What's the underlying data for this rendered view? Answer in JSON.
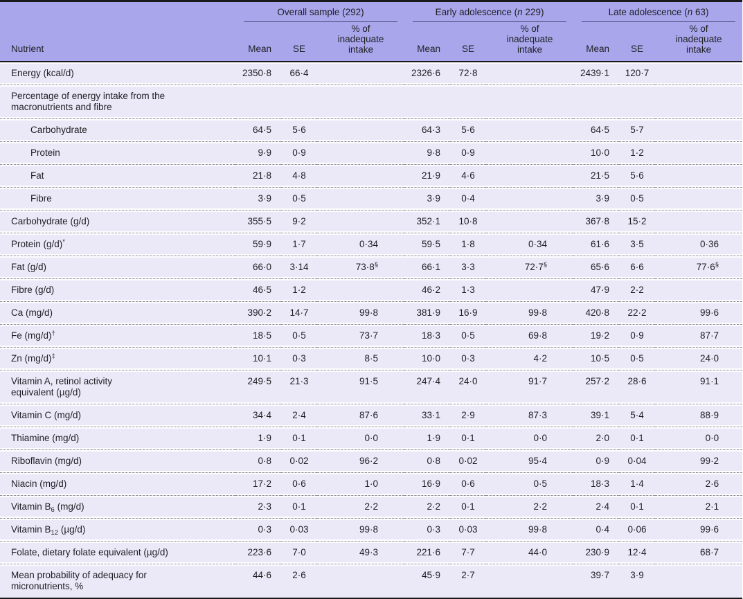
{
  "colors": {
    "header_bg": "#a9a6ec",
    "row_bg": "#ebe9f8",
    "band": "#fdfdff",
    "dash": "#8f8f93",
    "border_dark": "#19191c",
    "group_rule": "#43406e",
    "text": "#1e1e22"
  },
  "table": {
    "header": {
      "nutrient_label": "Nutrient",
      "groups": [
        {
          "pre": "Overall sample (292)",
          "n": "",
          "post": ""
        },
        {
          "pre": "Early adolescence (",
          "n": "n",
          "post": " 229)"
        },
        {
          "pre": "Late adolescence (",
          "n": "n",
          "post": " 63)"
        }
      ],
      "sub": {
        "mean": "Mean",
        "se": "SE",
        "pct": "% of inadequate intake"
      }
    },
    "rows": [
      {
        "name": "Energy (kcal/d)",
        "overall": {
          "mean": "2350·8",
          "se": "66·4",
          "pct": ""
        },
        "early": {
          "mean": "2326·6",
          "se": "72·8",
          "pct": ""
        },
        "late": {
          "mean": "2439·1",
          "se": "120·7",
          "pct": ""
        }
      },
      {
        "name": "Percentage of energy intake from the\nmacronutrients and fibre",
        "section": true,
        "overall": {
          "mean": "",
          "se": "",
          "pct": ""
        },
        "early": {
          "mean": "",
          "se": "",
          "pct": ""
        },
        "late": {
          "mean": "",
          "se": "",
          "pct": ""
        }
      },
      {
        "name": "Carbohydrate",
        "indent": true,
        "overall": {
          "mean": "64·5",
          "se": "5·6",
          "pct": ""
        },
        "early": {
          "mean": "64·3",
          "se": "5·6",
          "pct": ""
        },
        "late": {
          "mean": "64·5",
          "se": "5·7",
          "pct": ""
        }
      },
      {
        "name": "Protein",
        "indent": true,
        "overall": {
          "mean": "9·9",
          "se": "0·9",
          "pct": ""
        },
        "early": {
          "mean": "9·8",
          "se": "0·9",
          "pct": ""
        },
        "late": {
          "mean": "10·0",
          "se": "1·2",
          "pct": ""
        }
      },
      {
        "name": "Fat",
        "indent": true,
        "overall": {
          "mean": "21·8",
          "se": "4·8",
          "pct": ""
        },
        "early": {
          "mean": "21·9",
          "se": "4·6",
          "pct": ""
        },
        "late": {
          "mean": "21·5",
          "se": "5·6",
          "pct": ""
        }
      },
      {
        "name": "Fibre",
        "indent": true,
        "overall": {
          "mean": "3·9",
          "se": "0·5",
          "pct": ""
        },
        "early": {
          "mean": "3·9",
          "se": "0·4",
          "pct": ""
        },
        "late": {
          "mean": "3·9",
          "se": "0·5",
          "pct": ""
        }
      },
      {
        "name": "Carbohydrate (g/d)",
        "overall": {
          "mean": "355·5",
          "se": "9·2",
          "pct": ""
        },
        "early": {
          "mean": "352·1",
          "se": "10·8",
          "pct": ""
        },
        "late": {
          "mean": "367·8",
          "se": "15·2",
          "pct": ""
        }
      },
      {
        "name": "Protein (g/d)",
        "name_sup": "*",
        "overall": {
          "mean": "59·9",
          "se": "1·7",
          "pct": "0·34"
        },
        "early": {
          "mean": "59·5",
          "se": "1·8",
          "pct": "0·34"
        },
        "late": {
          "mean": "61·6",
          "se": "3·5",
          "pct": "0·36"
        }
      },
      {
        "name": "Fat (g/d)",
        "overall": {
          "mean": "66·0",
          "se": "3·14",
          "pct": "73·8",
          "pct_sup": "§"
        },
        "early": {
          "mean": "66·1",
          "se": "3·3",
          "pct": "72·7",
          "pct_sup": "§"
        },
        "late": {
          "mean": "65·6",
          "se": "6·6",
          "pct": "77·6",
          "pct_sup": "§"
        }
      },
      {
        "name": "Fibre (g/d)",
        "overall": {
          "mean": "46·5",
          "se": "1·2",
          "pct": ""
        },
        "early": {
          "mean": "46·2",
          "se": "1·3",
          "pct": ""
        },
        "late": {
          "mean": "47·9",
          "se": "2·2",
          "pct": ""
        }
      },
      {
        "name": "Ca (mg/d)",
        "overall": {
          "mean": "390·2",
          "se": "14·7",
          "pct": "99·8"
        },
        "early": {
          "mean": "381·9",
          "se": "16·9",
          "pct": "99·8"
        },
        "late": {
          "mean": "420·8",
          "se": "22·2",
          "pct": "99·6"
        }
      },
      {
        "name": "Fe (mg/d)",
        "name_sup": "†",
        "overall": {
          "mean": "18·5",
          "se": "0·5",
          "pct": "73·7"
        },
        "early": {
          "mean": "18·3",
          "se": "0·5",
          "pct": "69·8"
        },
        "late": {
          "mean": "19·2",
          "se": "0·9",
          "pct": "87·7"
        }
      },
      {
        "name": "Zn (mg/d)",
        "name_sup": "‡",
        "overall": {
          "mean": "10·1",
          "se": "0·3",
          "pct": "8·5"
        },
        "early": {
          "mean": "10·0",
          "se": "0·3",
          "pct": "4·2"
        },
        "late": {
          "mean": "10·5",
          "se": "0·5",
          "pct": "24·0"
        }
      },
      {
        "name": "Vitamin A, retinol activity\nequivalent (µg/d)",
        "overall": {
          "mean": "249·5",
          "se": "21·3",
          "pct": "91·5"
        },
        "early": {
          "mean": "247·4",
          "se": "24·0",
          "pct": "91·7"
        },
        "late": {
          "mean": "257·2",
          "se": "28·6",
          "pct": "91·1"
        }
      },
      {
        "name": "Vitamin C (mg/d)",
        "overall": {
          "mean": "34·4",
          "se": "2·4",
          "pct": "87·6"
        },
        "early": {
          "mean": "33·1",
          "se": "2·9",
          "pct": "87·3"
        },
        "late": {
          "mean": "39·1",
          "se": "5·4",
          "pct": "88·9"
        }
      },
      {
        "name": "Thiamine (mg/d)",
        "overall": {
          "mean": "1·9",
          "se": "0·1",
          "pct": "0·0"
        },
        "early": {
          "mean": "1·9",
          "se": "0·1",
          "pct": "0·0"
        },
        "late": {
          "mean": "2·0",
          "se": "0·1",
          "pct": "0·0"
        }
      },
      {
        "name": "Riboflavin (mg/d)",
        "overall": {
          "mean": "0·8",
          "se": "0·02",
          "pct": "96·2"
        },
        "early": {
          "mean": "0·8",
          "se": "0·02",
          "pct": "95·4"
        },
        "late": {
          "mean": "0·9",
          "se": "0·04",
          "pct": "99·2"
        }
      },
      {
        "name": "Niacin (mg/d)",
        "overall": {
          "mean": "17·2",
          "se": "0·6",
          "pct": "1·0"
        },
        "early": {
          "mean": "16·9",
          "se": "0·6",
          "pct": "0·5"
        },
        "late": {
          "mean": "18·3",
          "se": "1·4",
          "pct": "2·6"
        }
      },
      {
        "name": "Vitamin B",
        "name_sub": "6",
        "name_post": " (mg/d)",
        "overall": {
          "mean": "2·3",
          "se": "0·1",
          "pct": "2·2"
        },
        "early": {
          "mean": "2·2",
          "se": "0·1",
          "pct": "2·2"
        },
        "late": {
          "mean": "2·4",
          "se": "0·1",
          "pct": "2·1"
        }
      },
      {
        "name": "Vitamin B",
        "name_sub": "12",
        "name_post": " (µg/d)",
        "overall": {
          "mean": "0·3",
          "se": "0·03",
          "pct": "99·8"
        },
        "early": {
          "mean": "0·3",
          "se": "0·03",
          "pct": "99·8"
        },
        "late": {
          "mean": "0·4",
          "se": "0·06",
          "pct": "99·6"
        }
      },
      {
        "name": "Folate, dietary folate equivalent (µg/d)",
        "overall": {
          "mean": "223·6",
          "se": "7·0",
          "pct": "49·3"
        },
        "early": {
          "mean": "221·6",
          "se": "7·7",
          "pct": "44·0"
        },
        "late": {
          "mean": "230·9",
          "se": "12·4",
          "pct": "68·7"
        }
      },
      {
        "name": "Mean probability of adequacy for\nmicronutrients, %",
        "overall": {
          "mean": "44·6",
          "se": "2·6",
          "pct": ""
        },
        "early": {
          "mean": "45·9",
          "se": "2·7",
          "pct": ""
        },
        "late": {
          "mean": "39·7",
          "se": "3·9",
          "pct": ""
        }
      }
    ]
  }
}
